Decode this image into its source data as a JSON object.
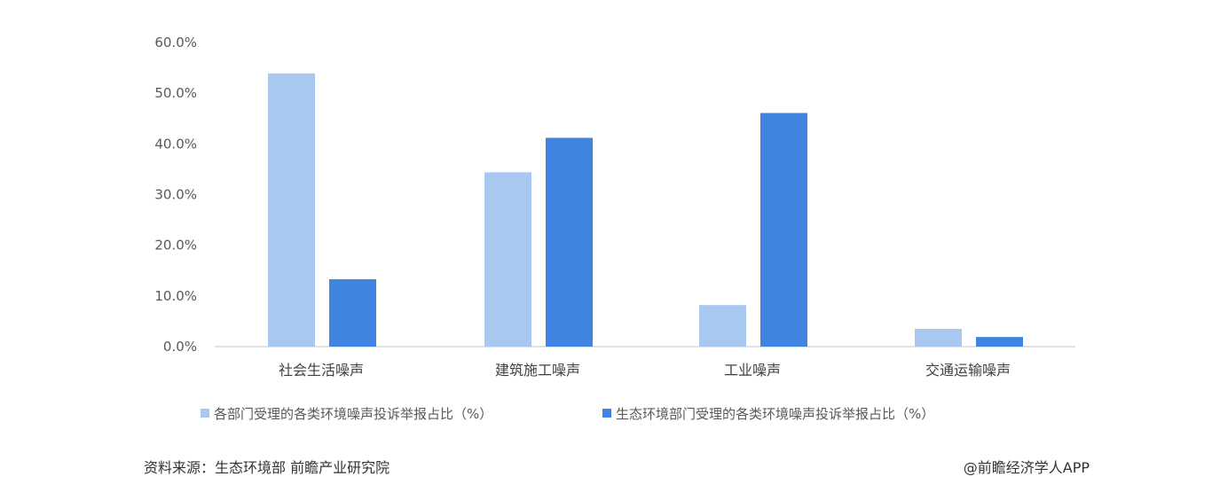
{
  "chart_data": {
    "type": "bar",
    "categories": [
      "社会生活噪声",
      "建筑施工噪声",
      "工业噪声",
      "交通运输噪声"
    ],
    "series": [
      {
        "name": "各部门受理的各类环境噪声投诉举报占比（%）",
        "color": "#a9c8f0",
        "values": [
          53.9,
          34.4,
          8.2,
          3.5
        ]
      },
      {
        "name": "生态环境部门受理的各类环境噪声投诉举报占比（%）",
        "color": "#3f84e0",
        "values": [
          13.3,
          41.2,
          46.1,
          1.9
        ]
      }
    ],
    "yticks": [
      "0.0%",
      "10.0%",
      "20.0%",
      "30.0%",
      "40.0%",
      "50.0%",
      "60.0%"
    ],
    "ylim": [
      0,
      60
    ],
    "grid": false,
    "legend": "bottom"
  },
  "footer": {
    "source": "资料来源：生态环境部 前瞻产业研究院",
    "credit": "@前瞻经济学人APP"
  }
}
